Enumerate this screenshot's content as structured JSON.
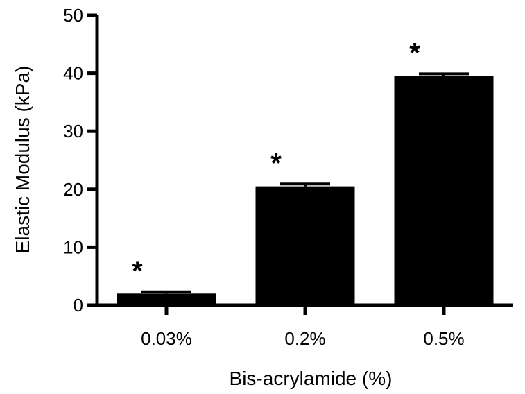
{
  "chart_data": {
    "type": "bar",
    "categories": [
      "0.03%",
      "0.2%",
      "0.5%"
    ],
    "values": [
      2.0,
      20.5,
      39.5
    ],
    "error_upper": [
      2.3,
      20.9,
      39.9
    ],
    "annotations": [
      "*",
      "*",
      "*"
    ],
    "title": "",
    "xlabel": "Bis-acrylamide (%)",
    "ylabel": "Elastic Modulus (kPa)",
    "ylim": [
      0,
      50
    ],
    "yticks": [
      0,
      10,
      20,
      30,
      40,
      50
    ],
    "grid": false,
    "legend": "none",
    "bar_color": "#000000"
  }
}
